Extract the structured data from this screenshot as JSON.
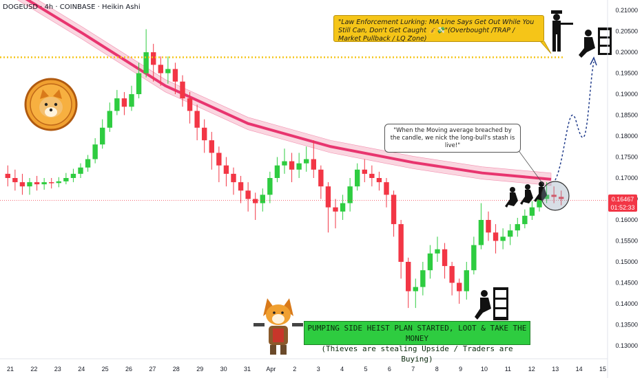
{
  "title": "DOGEUSD · 4h · COINBASE · Heikin Ashi",
  "y_ticks": [
    "0.21000",
    "0.20500",
    "0.20000",
    "0.19500",
    "0.19000",
    "0.18500",
    "0.18000",
    "0.17500",
    "0.17000",
    "0.16500",
    "0.16000",
    "0.15500",
    "0.15000",
    "0.14500",
    "0.14000",
    "0.13500",
    "0.13000"
  ],
  "x_ticks": [
    "21",
    "22",
    "23",
    "24",
    "25",
    "26",
    "27",
    "28",
    "29",
    "30",
    "31",
    "Apr",
    "2",
    "3",
    "4",
    "5",
    "6",
    "7",
    "8",
    "9",
    "10",
    "11",
    "12",
    "13",
    "14",
    "15"
  ],
  "last_price": {
    "value": "0.16467",
    "countdown": "01:52:33"
  },
  "callout_top": "\"Law Enforcement Lurking: MA Line Says Get Out While You Still Can, Don't Get Caught 💰💸\"(Overbought /TRAP / Market Pullback / LQ Zone)",
  "callout_ma": "\"When the Moving average breached by the candle, we nick the long-bull's stash is live!\"",
  "plan_line1": "PUMPING SIDE HEIST PLAN STARTED, LOOT & TAKE THE MONEY",
  "plan_line2": "(Thieves are stealing Upside / Traders are Buying)",
  "colors": {
    "up": "#2ecc40",
    "down": "#f23645",
    "ma": "#e8356f",
    "ma_band": "#f7b6c8",
    "trap_line": "#f5c518",
    "accent": "#f5c518"
  },
  "icons": [
    "shiba-coin-icon",
    "shiba-cowboy-icon",
    "thief-icon",
    "police-icon",
    "vault-icon"
  ],
  "chart_data": {
    "type": "candlestick",
    "title": "DOGEUSD · 4h · COINBASE · Heikin Ashi",
    "ylim": [
      0.128,
      0.212
    ],
    "trap_level": 0.1988,
    "last_price": 0.16467,
    "ma_points": [
      [
        0,
        0.2165
      ],
      [
        120,
        0.2045
      ],
      [
        240,
        0.192
      ],
      [
        360,
        0.183
      ],
      [
        480,
        0.1775
      ],
      [
        600,
        0.1737
      ],
      [
        700,
        0.1712
      ],
      [
        800,
        0.1697
      ]
    ],
    "candles": [
      [
        0.171,
        0.17,
        0.173,
        0.168
      ],
      [
        0.17,
        0.169,
        0.172,
        0.167
      ],
      [
        0.169,
        0.168,
        0.171,
        0.166
      ],
      [
        0.168,
        0.169,
        0.17,
        0.166
      ],
      [
        0.169,
        0.1685,
        0.1705,
        0.167
      ],
      [
        0.1685,
        0.169,
        0.17,
        0.1672
      ],
      [
        0.169,
        0.1688,
        0.17,
        0.1675
      ],
      [
        0.1688,
        0.1692,
        0.1702,
        0.1678
      ],
      [
        0.1692,
        0.17,
        0.1712,
        0.1685
      ],
      [
        0.17,
        0.171,
        0.1722,
        0.169
      ],
      [
        0.171,
        0.1725,
        0.1735,
        0.17
      ],
      [
        0.1725,
        0.1745,
        0.1755,
        0.1715
      ],
      [
        0.1745,
        0.178,
        0.1795,
        0.1735
      ],
      [
        0.178,
        0.182,
        0.184,
        0.177
      ],
      [
        0.182,
        0.186,
        0.188,
        0.181
      ],
      [
        0.186,
        0.189,
        0.191,
        0.185
      ],
      [
        0.189,
        0.187,
        0.1905,
        0.185
      ],
      [
        0.187,
        0.19,
        0.192,
        0.186
      ],
      [
        0.19,
        0.195,
        0.1975,
        0.189
      ],
      [
        0.195,
        0.2,
        0.2055,
        0.194
      ],
      [
        0.2,
        0.197,
        0.202,
        0.193
      ],
      [
        0.197,
        0.195,
        0.199,
        0.192
      ],
      [
        0.195,
        0.196,
        0.199,
        0.1925
      ],
      [
        0.196,
        0.193,
        0.1975,
        0.19
      ],
      [
        0.193,
        0.189,
        0.1945,
        0.187
      ],
      [
        0.189,
        0.186,
        0.1905,
        0.183
      ],
      [
        0.186,
        0.182,
        0.1875,
        0.179
      ],
      [
        0.182,
        0.179,
        0.184,
        0.176
      ],
      [
        0.179,
        0.176,
        0.181,
        0.172
      ],
      [
        0.176,
        0.173,
        0.1775,
        0.169
      ],
      [
        0.173,
        0.171,
        0.175,
        0.168
      ],
      [
        0.171,
        0.169,
        0.1725,
        0.166
      ],
      [
        0.169,
        0.167,
        0.1705,
        0.164
      ],
      [
        0.167,
        0.165,
        0.169,
        0.162
      ],
      [
        0.165,
        0.164,
        0.1665,
        0.16
      ],
      [
        0.164,
        0.166,
        0.1675,
        0.162
      ],
      [
        0.166,
        0.17,
        0.1715,
        0.164
      ],
      [
        0.17,
        0.173,
        0.175,
        0.169
      ],
      [
        0.173,
        0.174,
        0.177,
        0.171
      ],
      [
        0.174,
        0.172,
        0.176,
        0.169
      ],
      [
        0.172,
        0.1735,
        0.176,
        0.17
      ],
      [
        0.1735,
        0.1745,
        0.1775,
        0.1715
      ],
      [
        0.1745,
        0.172,
        0.179,
        0.17
      ],
      [
        0.172,
        0.168,
        0.173,
        0.165
      ],
      [
        0.168,
        0.163,
        0.169,
        0.157
      ],
      [
        0.163,
        0.162,
        0.165,
        0.158
      ],
      [
        0.162,
        0.164,
        0.166,
        0.16
      ],
      [
        0.164,
        0.168,
        0.17,
        0.162
      ],
      [
        0.168,
        0.172,
        0.1735,
        0.167
      ],
      [
        0.172,
        0.171,
        0.1745,
        0.169
      ],
      [
        0.171,
        0.17,
        0.173,
        0.168
      ],
      [
        0.17,
        0.169,
        0.1715,
        0.167
      ],
      [
        0.169,
        0.166,
        0.17,
        0.163
      ],
      [
        0.166,
        0.159,
        0.167,
        0.156
      ],
      [
        0.159,
        0.15,
        0.16,
        0.146
      ],
      [
        0.15,
        0.143,
        0.151,
        0.139
      ],
      [
        0.143,
        0.144,
        0.146,
        0.139
      ],
      [
        0.144,
        0.148,
        0.15,
        0.142
      ],
      [
        0.148,
        0.152,
        0.154,
        0.146
      ],
      [
        0.152,
        0.153,
        0.156,
        0.15
      ],
      [
        0.153,
        0.149,
        0.1545,
        0.146
      ],
      [
        0.149,
        0.145,
        0.15,
        0.142
      ],
      [
        0.145,
        0.143,
        0.146,
        0.14
      ],
      [
        0.143,
        0.148,
        0.15,
        0.141
      ],
      [
        0.148,
        0.154,
        0.156,
        0.147
      ],
      [
        0.154,
        0.16,
        0.164,
        0.153
      ],
      [
        0.16,
        0.157,
        0.162,
        0.155
      ],
      [
        0.157,
        0.155,
        0.159,
        0.152
      ],
      [
        0.155,
        0.156,
        0.158,
        0.153
      ],
      [
        0.156,
        0.1575,
        0.159,
        0.154
      ],
      [
        0.1575,
        0.159,
        0.1605,
        0.156
      ],
      [
        0.159,
        0.161,
        0.1625,
        0.158
      ],
      [
        0.161,
        0.163,
        0.1645,
        0.16
      ],
      [
        0.163,
        0.165,
        0.167,
        0.162
      ],
      [
        0.165,
        0.166,
        0.169,
        0.164
      ],
      [
        0.166,
        0.1655,
        0.168,
        0.164
      ],
      [
        0.1655,
        0.165,
        0.167,
        0.1635
      ]
    ]
  }
}
